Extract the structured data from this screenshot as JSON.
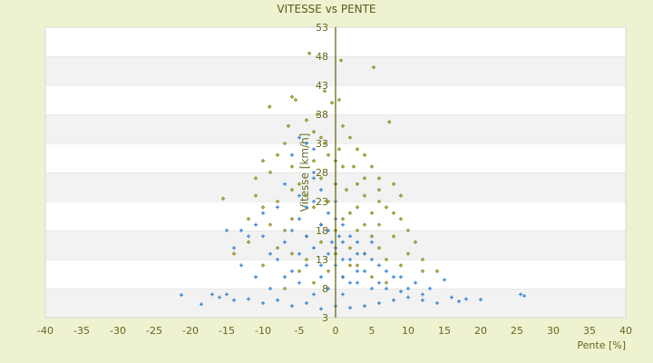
{
  "chart_data": {
    "type": "scatter",
    "title": "VITESSE vs PENTE",
    "xlabel": "Pente [%]",
    "ylabel": "Vitesse [km/h]",
    "xlim": [
      -40,
      40
    ],
    "ylim": [
      3,
      53
    ],
    "xticks": [
      -40,
      -35,
      -30,
      -25,
      -20,
      -15,
      -10,
      -5,
      0,
      5,
      10,
      15,
      20,
      25,
      30,
      35,
      40
    ],
    "yticks": [
      3,
      8,
      13,
      18,
      23,
      28,
      33,
      38,
      43,
      48,
      53
    ],
    "grid": true,
    "colors": {
      "series1": "#7a7a12",
      "series2": "#3a88d8",
      "background": "#eef2d0",
      "axis": "#5c5c00"
    },
    "series": [
      {
        "marker": "diamond",
        "points": [
          [
            -3.6,
            48.5
          ],
          [
            0.75,
            47.3
          ],
          [
            5.25,
            46.1
          ],
          [
            -9.1,
            39.3
          ],
          [
            -15.5,
            23.5
          ],
          [
            7.4,
            36.7
          ],
          [
            -6,
            41
          ],
          [
            -5.5,
            40.5
          ],
          [
            -1.5,
            42
          ],
          [
            -0.5,
            40
          ],
          [
            0.5,
            40.5
          ],
          [
            -2.5,
            38
          ],
          [
            -4,
            37
          ],
          [
            -6.5,
            36
          ],
          [
            1,
            36
          ],
          [
            2,
            34
          ],
          [
            -2,
            34
          ],
          [
            3,
            32
          ],
          [
            4,
            31
          ],
          [
            -7,
            33
          ],
          [
            -8,
            31
          ],
          [
            -10,
            30
          ],
          [
            -9,
            28
          ],
          [
            -6,
            29
          ],
          [
            -3,
            30
          ],
          [
            -1,
            31
          ],
          [
            1,
            29
          ],
          [
            2.5,
            29
          ],
          [
            5,
            29
          ],
          [
            6,
            27
          ],
          [
            8,
            26
          ],
          [
            9,
            24
          ],
          [
            -11,
            27
          ],
          [
            -11,
            24
          ],
          [
            -10,
            22
          ],
          [
            -8,
            23
          ],
          [
            -5,
            26
          ],
          [
            -4,
            24
          ],
          [
            -2,
            27
          ],
          [
            0,
            26
          ],
          [
            1.5,
            25
          ],
          [
            3,
            26
          ],
          [
            4,
            24
          ],
          [
            6,
            23
          ],
          [
            7,
            22
          ],
          [
            8,
            21
          ],
          [
            9,
            20
          ],
          [
            10,
            18
          ],
          [
            11,
            16
          ],
          [
            6,
            19
          ],
          [
            5,
            21
          ],
          [
            3,
            22
          ],
          [
            2,
            21
          ],
          [
            -1,
            23
          ],
          [
            -3,
            22
          ],
          [
            -6,
            20
          ],
          [
            -7,
            18
          ],
          [
            -9,
            19
          ],
          [
            -12,
            20
          ],
          [
            -8,
            15
          ],
          [
            -6,
            14
          ],
          [
            -4,
            13
          ],
          [
            -2,
            16
          ],
          [
            0,
            18
          ],
          [
            2,
            15
          ],
          [
            4,
            14
          ],
          [
            6,
            15
          ],
          [
            7,
            13
          ],
          [
            9,
            12
          ],
          [
            10,
            14
          ],
          [
            8,
            17
          ],
          [
            5,
            17
          ],
          [
            3,
            18
          ],
          [
            -5,
            11
          ],
          [
            -3,
            9
          ],
          [
            -1,
            11
          ],
          [
            1,
            10
          ],
          [
            3,
            12
          ],
          [
            5,
            10
          ],
          [
            7,
            9
          ],
          [
            12,
            11
          ],
          [
            -10,
            12
          ],
          [
            -7,
            8
          ],
          [
            0,
            14
          ],
          [
            -2,
            19
          ],
          [
            4,
            19
          ],
          [
            2,
            12
          ],
          [
            1,
            20
          ],
          [
            -4,
            17
          ],
          [
            -6,
            25
          ],
          [
            0.5,
            32
          ],
          [
            0,
            30
          ],
          [
            -1.5,
            33
          ],
          [
            -3,
            35
          ],
          [
            4,
            27
          ],
          [
            6,
            25
          ],
          [
            12,
            13
          ],
          [
            14,
            11
          ],
          [
            -12,
            16
          ],
          [
            -14,
            14
          ]
        ]
      },
      {
        "marker": "plus",
        "points": [
          [
            -21.25,
            6.9
          ],
          [
            26,
            6.75
          ],
          [
            20,
            6.1
          ],
          [
            -18.5,
            5.3
          ],
          [
            25.5,
            7
          ],
          [
            -17,
            7
          ],
          [
            -16,
            6.5
          ],
          [
            -15,
            7
          ],
          [
            -14,
            6
          ],
          [
            -12,
            6.2
          ],
          [
            -10,
            5.5
          ],
          [
            -8,
            6
          ],
          [
            -6,
            5
          ],
          [
            -4,
            5.5
          ],
          [
            -2,
            4.5
          ],
          [
            0,
            5
          ],
          [
            2,
            4.7
          ],
          [
            4,
            5
          ],
          [
            6,
            5.5
          ],
          [
            8,
            6
          ],
          [
            10,
            6.5
          ],
          [
            12,
            6
          ],
          [
            14,
            5.5
          ],
          [
            16,
            6.5
          ],
          [
            17,
            5.8
          ],
          [
            18,
            6.2
          ],
          [
            13,
            8
          ],
          [
            15,
            9.5
          ],
          [
            11,
            9
          ],
          [
            9,
            10
          ],
          [
            9,
            7.5
          ],
          [
            7,
            8
          ],
          [
            5,
            8
          ],
          [
            3,
            9
          ],
          [
            1,
            7
          ],
          [
            -1,
            8
          ],
          [
            -3,
            7
          ],
          [
            -5,
            9
          ],
          [
            -7,
            10
          ],
          [
            -9,
            8
          ],
          [
            -11,
            10
          ],
          [
            -13,
            12
          ],
          [
            -14,
            15
          ],
          [
            -15,
            18
          ],
          [
            -13,
            18
          ],
          [
            -12,
            17
          ],
          [
            -11,
            19
          ],
          [
            -10,
            17
          ],
          [
            -9,
            14
          ],
          [
            -8,
            13
          ],
          [
            -7,
            16
          ],
          [
            -6,
            18
          ],
          [
            -5,
            20
          ],
          [
            -4,
            22
          ],
          [
            -3,
            23
          ],
          [
            -2,
            25
          ],
          [
            -1,
            21
          ],
          [
            0,
            20
          ],
          [
            1,
            19
          ],
          [
            2,
            17
          ],
          [
            3,
            16
          ],
          [
            4,
            14
          ],
          [
            5,
            13
          ],
          [
            6,
            12
          ],
          [
            7,
            11
          ],
          [
            8,
            10
          ],
          [
            -2,
            12
          ],
          [
            -1,
            14
          ],
          [
            0,
            15
          ],
          [
            1,
            16
          ],
          [
            2,
            13
          ],
          [
            3,
            11
          ],
          [
            -3,
            15
          ],
          [
            -4,
            17
          ],
          [
            -5,
            14
          ],
          [
            -1,
            18
          ],
          [
            0,
            12
          ],
          [
            1,
            10
          ],
          [
            2,
            9
          ],
          [
            4,
            11
          ],
          [
            -2,
            10
          ],
          [
            -4,
            12
          ],
          [
            -6,
            11
          ],
          [
            -5,
            34
          ],
          [
            -4,
            33
          ],
          [
            -3,
            32
          ],
          [
            -6,
            31
          ],
          [
            -3,
            27
          ],
          [
            -5,
            24
          ],
          [
            -8,
            22
          ],
          [
            -10,
            21
          ],
          [
            -2,
            19
          ],
          [
            0,
            23
          ],
          [
            0.5,
            17
          ],
          [
            -0.5,
            16
          ],
          [
            1,
            13
          ],
          [
            3,
            14
          ],
          [
            5,
            16
          ],
          [
            6,
            9
          ],
          [
            10,
            8
          ],
          [
            -3,
            28
          ],
          [
            -7,
            26
          ],
          [
            12,
            7
          ]
        ]
      }
    ]
  }
}
